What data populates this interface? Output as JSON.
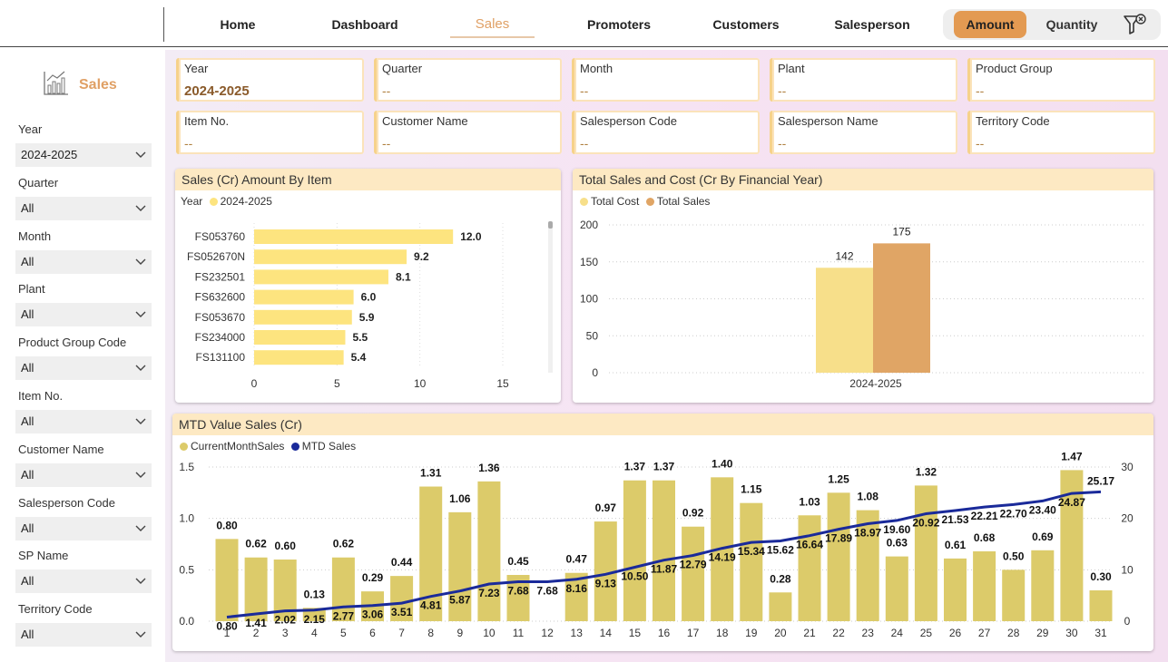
{
  "nav": {
    "tabs": [
      {
        "label": "Home"
      },
      {
        "label": "Dashboard"
      },
      {
        "label": "Sales"
      },
      {
        "label": "Promoters"
      },
      {
        "label": "Customers"
      },
      {
        "label": "Salesperson"
      }
    ],
    "active_tab": "Sales",
    "toggle": {
      "amount_label": "Amount",
      "quantity_label": "Quantity",
      "selected": "Amount"
    }
  },
  "sidebar": {
    "title": "Sales",
    "slicers": [
      {
        "label": "Year",
        "value": "2024-2025"
      },
      {
        "label": "Quarter",
        "value": "All"
      },
      {
        "label": "Month",
        "value": "All"
      },
      {
        "label": "Plant",
        "value": "All"
      },
      {
        "label": "Product Group Code",
        "value": "All"
      },
      {
        "label": "Item No.",
        "value": "All"
      },
      {
        "label": "Customer Name",
        "value": "All"
      },
      {
        "label": "Salesperson Code",
        "value": "All"
      },
      {
        "label": "SP Name",
        "value": "All"
      },
      {
        "label": "Territory Code",
        "value": "All"
      }
    ]
  },
  "filter_cards": [
    {
      "title": "Year",
      "value": "2024-2025"
    },
    {
      "title": "Quarter",
      "value": "--"
    },
    {
      "title": "Month",
      "value": "--"
    },
    {
      "title": "Plant",
      "value": "--"
    },
    {
      "title": "Product Group",
      "value": "--"
    },
    {
      "title": "Item No.",
      "value": "--"
    },
    {
      "title": "Customer Name",
      "value": "--"
    },
    {
      "title": "Salesperson Code",
      "value": "--"
    },
    {
      "title": "Salesperson Name",
      "value": "--"
    },
    {
      "title": "Territory Code",
      "value": "--"
    }
  ],
  "colors": {
    "accent": "#e39a52",
    "bar_yellow": "#fde47f",
    "cost": "#f7df8a",
    "sales": "#e0a565",
    "current_month": "#dccb6a",
    "mtd_line": "#1a2a9a",
    "title_bg": "#fde9c3"
  },
  "chart_data": [
    {
      "type": "bar",
      "orientation": "horizontal",
      "title": "Sales (Cr) Amount By Item",
      "legend_title": "Year",
      "series": [
        {
          "name": "2024-2025",
          "values": [
            12.0,
            9.2,
            8.1,
            6.0,
            5.9,
            5.5,
            5.4
          ]
        }
      ],
      "categories": [
        "FS053760",
        "FS052670N",
        "FS232501",
        "FS632600",
        "FS053670",
        "FS234000",
        "FS131100"
      ],
      "labels": [
        "12.0",
        "9.2",
        "8.1",
        "6.0",
        "5.9",
        "5.5",
        "5.4"
      ],
      "xlim": [
        0,
        15
      ],
      "xticks": [
        "0",
        "5",
        "10",
        "15"
      ]
    },
    {
      "type": "bar",
      "title": "Total Sales and Cost (Cr By Financial Year)",
      "categories": [
        "2024-2025"
      ],
      "series": [
        {
          "name": "Total Cost",
          "values": [
            142
          ]
        },
        {
          "name": "Total Sales",
          "values": [
            175
          ]
        }
      ],
      "ylim": [
        0,
        200
      ],
      "yticks": [
        "0",
        "50",
        "100",
        "150",
        "200"
      ],
      "legend": "top-left"
    },
    {
      "type": "bar",
      "title": "MTD Value Sales (Cr)",
      "categories": [
        "1",
        "2",
        "3",
        "4",
        "5",
        "6",
        "7",
        "8",
        "9",
        "10",
        "11",
        "12",
        "13",
        "14",
        "15",
        "16",
        "17",
        "18",
        "19",
        "20",
        "21",
        "22",
        "23",
        "24",
        "25",
        "26",
        "27",
        "28",
        "29",
        "30",
        "31"
      ],
      "series": [
        {
          "name": "CurrentMonthSales",
          "type": "bar",
          "axis": "left",
          "values": [
            0.8,
            0.62,
            0.6,
            0.13,
            0.62,
            0.29,
            0.44,
            1.31,
            1.06,
            1.36,
            0.45,
            null,
            0.47,
            0.97,
            1.37,
            1.37,
            0.92,
            1.4,
            1.15,
            0.28,
            1.03,
            1.25,
            1.08,
            0.63,
            1.32,
            0.61,
            0.68,
            0.5,
            0.69,
            1.47,
            0.3
          ],
          "labels": [
            "0.80",
            "0.62",
            "0.60",
            "0.13",
            "0.62",
            "0.29",
            "0.44",
            "1.31",
            "1.06",
            "1.36",
            "0.45",
            "",
            "0.47",
            "0.97",
            "1.37",
            "1.37",
            "0.92",
            "1.40",
            "1.15",
            "0.28",
            "1.03",
            "1.25",
            "1.08",
            "0.63",
            "1.32",
            "0.61",
            "0.68",
            "0.50",
            "0.69",
            "1.47",
            "0.30"
          ]
        },
        {
          "name": "MTD Sales",
          "type": "line",
          "axis": "right",
          "values": [
            0.8,
            1.41,
            2.02,
            2.15,
            2.77,
            3.06,
            3.51,
            4.81,
            5.87,
            7.23,
            7.68,
            7.68,
            8.16,
            9.13,
            10.5,
            11.87,
            12.79,
            14.19,
            15.34,
            15.62,
            16.64,
            17.89,
            18.97,
            19.6,
            20.92,
            21.53,
            22.21,
            22.7,
            23.4,
            24.87,
            25.17
          ],
          "labels": [
            "0.80",
            "1.41",
            "2.02",
            "2.15",
            "2.77",
            "3.06",
            "3.51",
            "4.81",
            "5.87",
            "7.23",
            "7.68",
            "7.68",
            "8.16",
            "9.13",
            "10.50",
            "11.87",
            "12.79",
            "14.19",
            "15.34",
            "15.62",
            "16.64",
            "17.89",
            "18.97",
            "19.60",
            "20.92",
            "21.53",
            "22.21",
            "22.70",
            "23.40",
            "24.87",
            "25.17"
          ]
        }
      ],
      "ylim_left": [
        0,
        1.5
      ],
      "yticks_left": [
        "0.0",
        "0.5",
        "1.0",
        "1.5"
      ],
      "ylim_right": [
        0,
        30
      ],
      "yticks_right": [
        "0",
        "10",
        "20",
        "30"
      ],
      "legend": "top-left"
    }
  ]
}
